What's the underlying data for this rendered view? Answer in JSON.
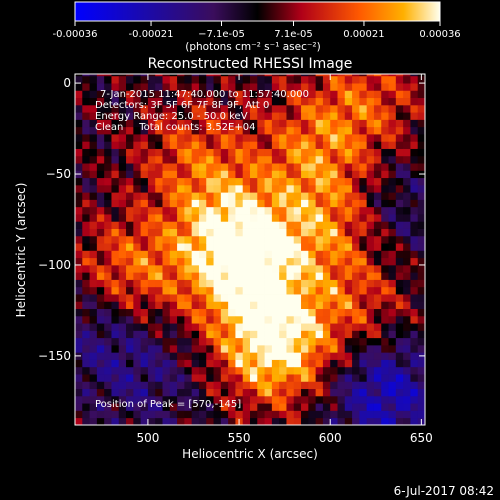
{
  "chart_data": {
    "type": "heatmap",
    "title": "Reconstructed RHESSI Image",
    "xlabel": "Heliocentric X (arcsec)",
    "ylabel": "Heliocentric Y (arcsec)",
    "xlim": [
      460,
      652
    ],
    "ylim": [
      -188,
      5
    ],
    "x_ticks": [
      500,
      550,
      600,
      650
    ],
    "y_ticks": [
      0,
      -50,
      -100,
      -150
    ],
    "colorbar": {
      "range": [
        -0.00036,
        0.00036
      ],
      "tick_values": [
        -0.00036,
        -0.00021,
        -7.1e-05,
        7.1e-05,
        0.00021,
        0.00036
      ],
      "tick_labels": [
        "-0.00036",
        "-0.00021",
        "−7.1e-05",
        "7.1e-05",
        "0.00021",
        "0.00036"
      ],
      "units_label": "(photons cm⁻² s⁻¹ asec⁻²)"
    },
    "annotations": [
      "7-Jan-2015 11:47:40.000 to 11:57:40.000",
      "Detectors: 3F 5F 6F 7F 8F 9F, Att 0",
      "Energy Range: 25.0 - 50.0 keV",
      "Clean     Total counts: 3.52E+04"
    ],
    "peak_label": "Position of Peak = [570,-145]",
    "peak": [
      570,
      -145
    ],
    "sources": [
      {
        "x": 570,
        "y": -145,
        "value": 0.00036
      },
      {
        "x": 555,
        "y": -105,
        "value": 0.0003
      },
      {
        "x": 545,
        "y": -80,
        "value": 0.00026
      },
      {
        "x": 490,
        "y": -105,
        "value": 0.00022
      },
      {
        "x": 600,
        "y": -75,
        "value": 0.00021
      },
      {
        "x": 525,
        "y": -40,
        "value": 0.00016
      },
      {
        "x": 590,
        "y": -35,
        "value": 0.00017
      },
      {
        "x": 620,
        "y": -10,
        "value": 0.00016
      },
      {
        "x": 615,
        "y": -120,
        "value": 0.00014
      },
      {
        "x": 630,
        "y": -170,
        "value": -0.00024
      },
      {
        "x": 475,
        "y": -135,
        "value": -0.00014
      },
      {
        "x": 500,
        "y": -165,
        "value": -0.0001
      },
      {
        "x": 635,
        "y": -70,
        "value": -0.00012
      }
    ]
  },
  "footer_date": "6-Jul-2017 08:42"
}
